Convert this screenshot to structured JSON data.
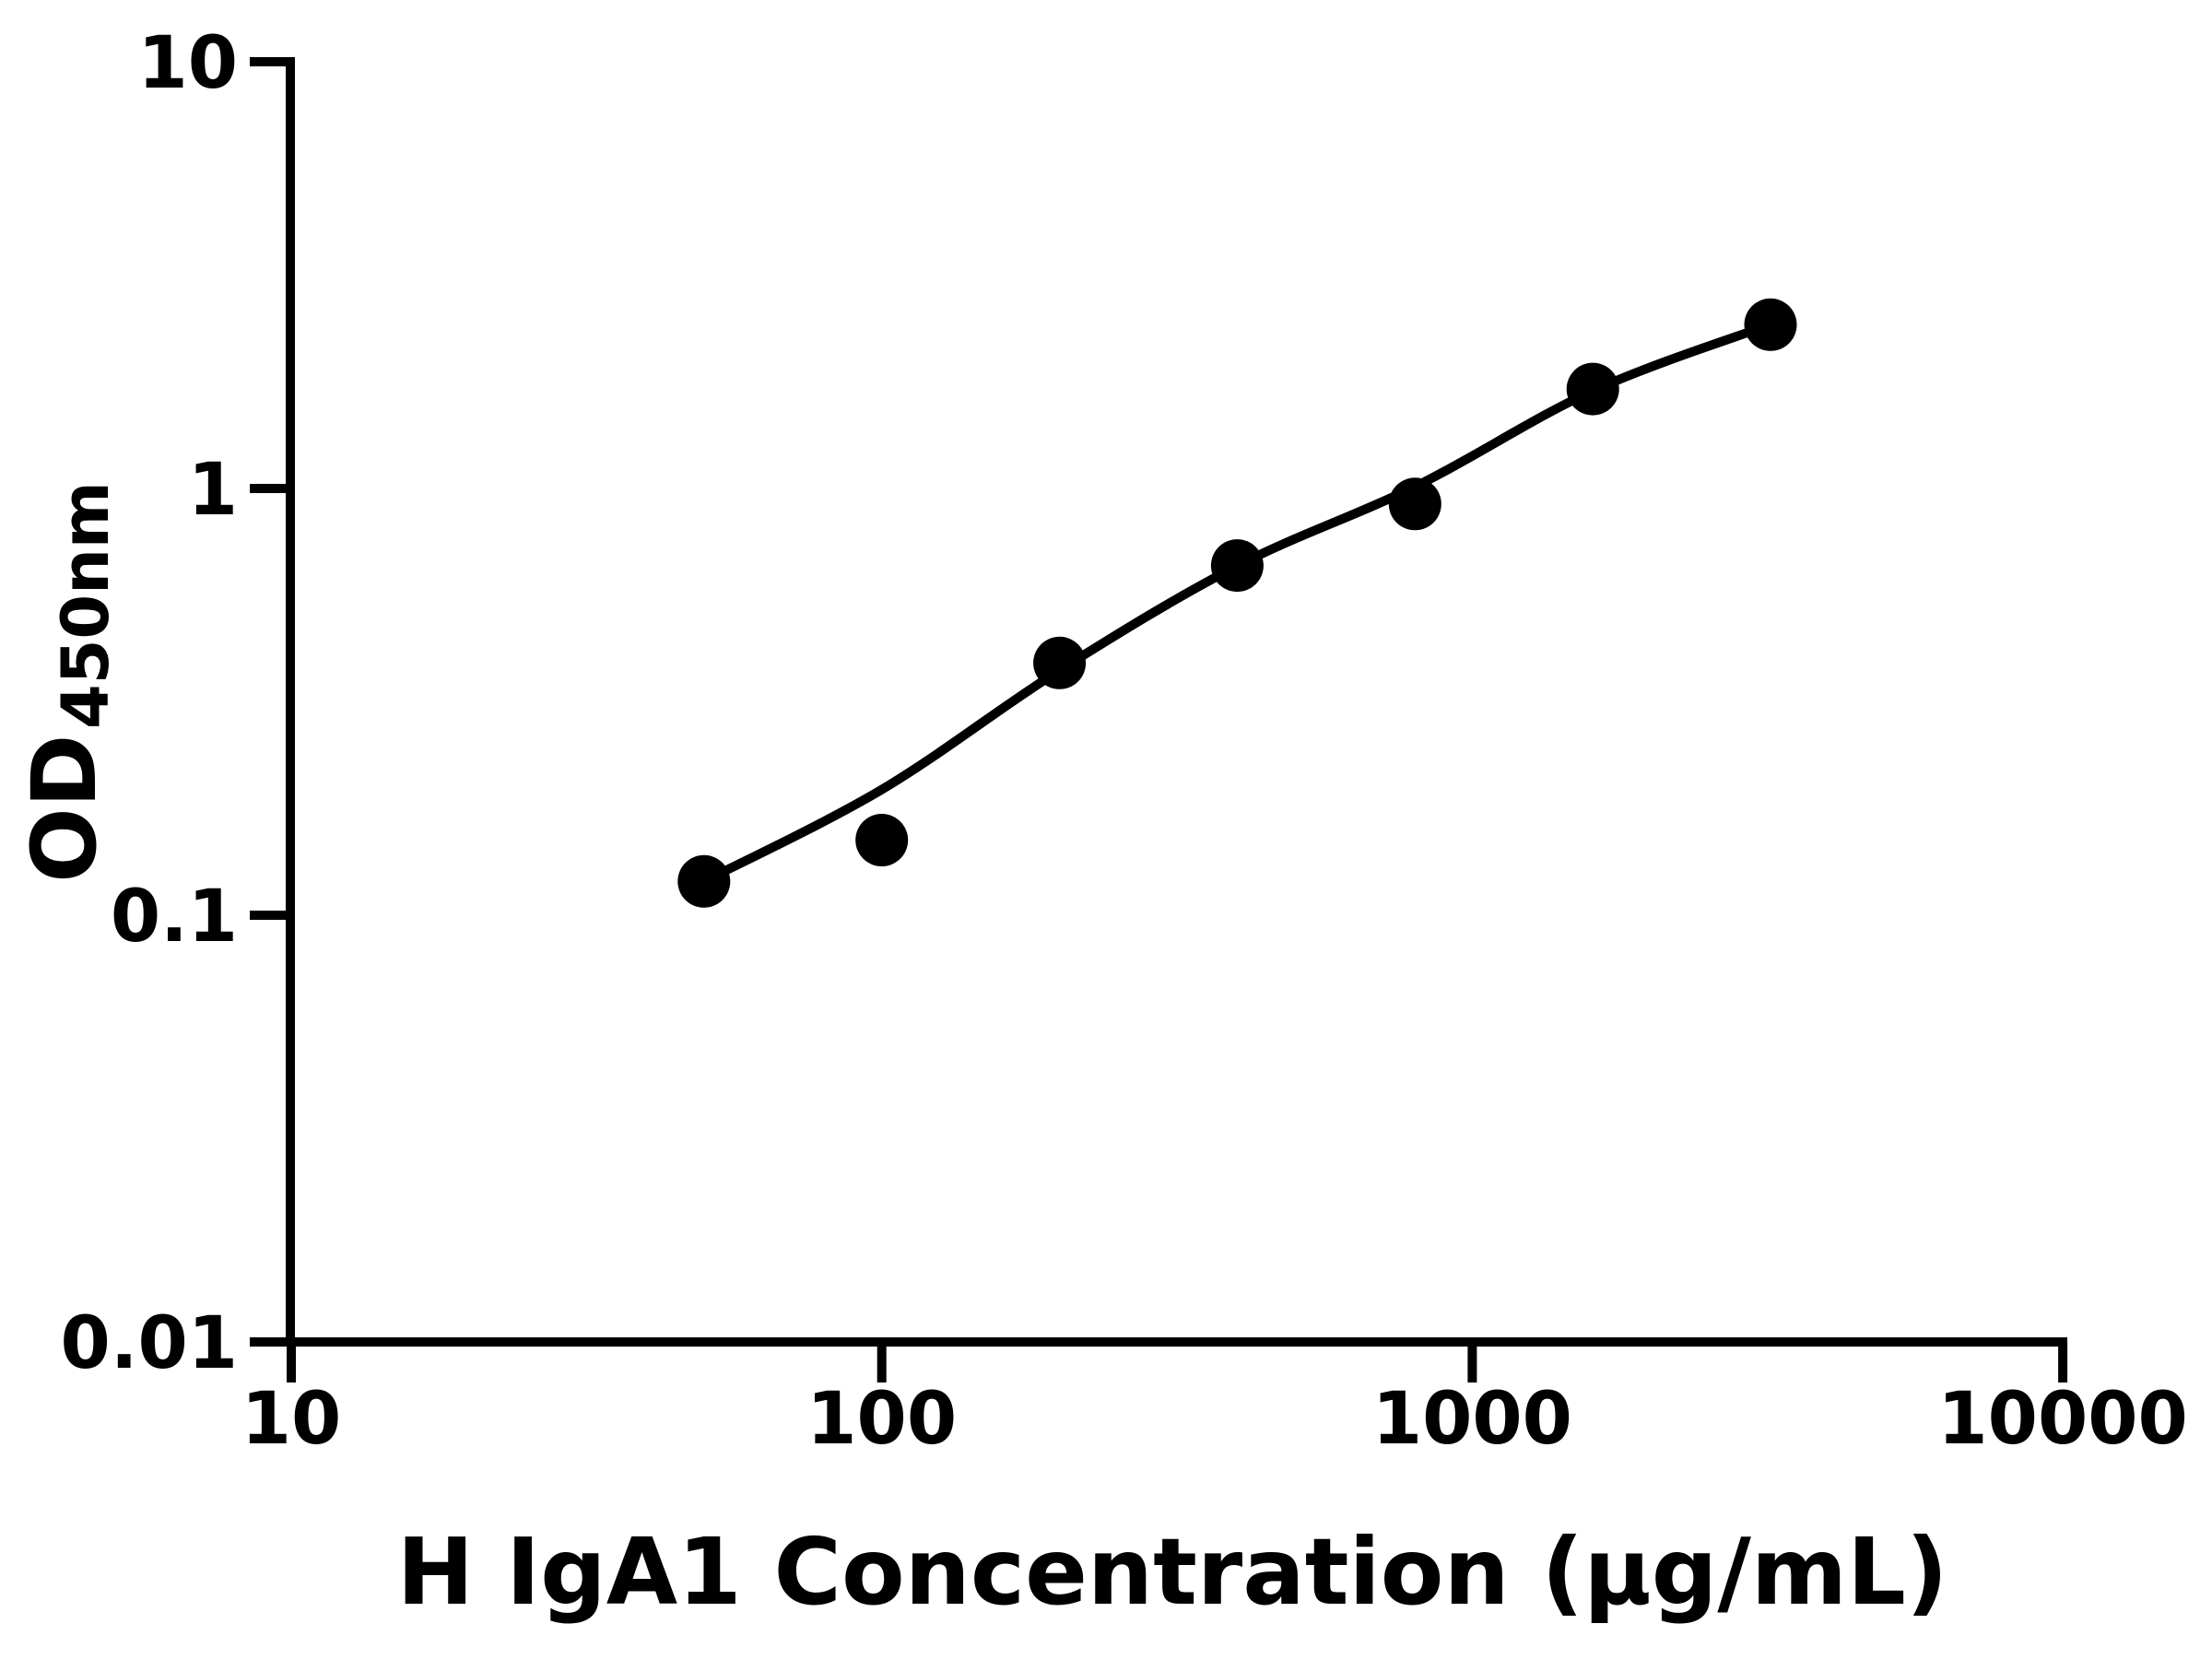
{
  "figure": {
    "background_color": "#ffffff",
    "foreground_color": "#000000"
  },
  "chart_data": {
    "type": "scatter",
    "title": "",
    "xlabel": "H IgA1 Concentration (μg/mL)",
    "ylabel": "OD",
    "ylabel_subscript": "450nm",
    "x_scale": "log",
    "y_scale": "log",
    "xlim": [
      10,
      10000
    ],
    "ylim": [
      0.01,
      10
    ],
    "grid": false,
    "legend": null,
    "x_ticks": [
      {
        "value": 10,
        "label": "10"
      },
      {
        "value": 100,
        "label": "100"
      },
      {
        "value": 1000,
        "label": "1000"
      },
      {
        "value": 10000,
        "label": "10000"
      }
    ],
    "y_ticks": [
      {
        "value": 10,
        "label": "10"
      },
      {
        "value": 1,
        "label": "1"
      },
      {
        "value": 0.1,
        "label": "0.1"
      },
      {
        "value": 0.01,
        "label": "0.01"
      }
    ],
    "series": [
      {
        "name": "standard-points",
        "type": "scatter",
        "marker": "circle",
        "color": "#000000",
        "points": [
          {
            "x": 50,
            "y": 0.12
          },
          {
            "x": 100,
            "y": 0.15
          },
          {
            "x": 200,
            "y": 0.39
          },
          {
            "x": 400,
            "y": 0.66
          },
          {
            "x": 800,
            "y": 0.92
          },
          {
            "x": 1600,
            "y": 1.71
          },
          {
            "x": 3200,
            "y": 2.42
          }
        ]
      },
      {
        "name": "fit-curve",
        "type": "line",
        "color": "#000000",
        "points": [
          {
            "x": 50,
            "y": 0.12
          },
          {
            "x": 100,
            "y": 0.197
          },
          {
            "x": 200,
            "y": 0.375
          },
          {
            "x": 400,
            "y": 0.659
          },
          {
            "x": 800,
            "y": 1.01
          },
          {
            "x": 1600,
            "y": 1.694
          },
          {
            "x": 3200,
            "y": 2.423
          }
        ]
      }
    ]
  }
}
